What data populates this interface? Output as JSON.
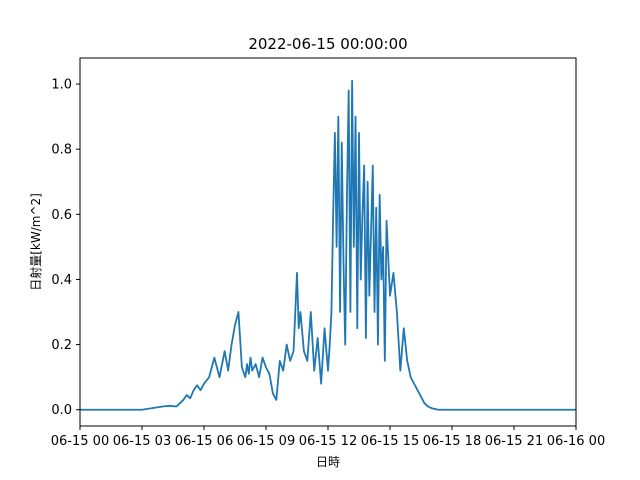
{
  "chart_data": {
    "type": "line",
    "title": "2022-06-15 00:00:00",
    "xlabel": "日時",
    "ylabel": "日射量[kW/m^2]",
    "xlim": [
      "06-15 00",
      "06-16 00"
    ],
    "ylim": [
      -0.05,
      1.08
    ],
    "x_ticks": [
      "06-15 00",
      "06-15 03",
      "06-15 06",
      "06-15 09",
      "06-15 12",
      "06-15 15",
      "06-15 18",
      "06-15 21",
      "06-16 00"
    ],
    "y_ticks": [
      "0.0",
      "0.2",
      "0.4",
      "0.6",
      "0.8",
      "1.0"
    ],
    "grid": false,
    "line_color": "#1f77b4",
    "series": [
      {
        "x": [
          "06-15 00:00",
          "06-15 01:00",
          "06-15 02:00",
          "06-15 03:00",
          "06-15 04:00",
          "06-15 04:20",
          "06-15 04:40",
          "06-15 05:00",
          "06-15 05:10",
          "06-15 05:20",
          "06-15 05:30",
          "06-15 05:40",
          "06-15 05:50",
          "06-15 06:00",
          "06-15 06:15",
          "06-15 06:30",
          "06-15 06:45",
          "06-15 07:00",
          "06-15 07:10",
          "06-15 07:20",
          "06-15 07:30",
          "06-15 07:40",
          "06-15 07:50",
          "06-15 08:00",
          "06-15 08:05",
          "06-15 08:10",
          "06-15 08:15",
          "06-15 08:20",
          "06-15 08:30",
          "06-15 08:40",
          "06-15 08:50",
          "06-15 09:00",
          "06-15 09:10",
          "06-15 09:20",
          "06-15 09:30",
          "06-15 09:40",
          "06-15 09:50",
          "06-15 10:00",
          "06-15 10:10",
          "06-15 10:20",
          "06-15 10:25",
          "06-15 10:30",
          "06-15 10:35",
          "06-15 10:40",
          "06-15 10:50",
          "06-15 11:00",
          "06-15 11:10",
          "06-15 11:20",
          "06-15 11:30",
          "06-15 11:40",
          "06-15 11:50",
          "06-15 12:00",
          "06-15 12:05",
          "06-15 12:10",
          "06-15 12:15",
          "06-15 12:20",
          "06-15 12:25",
          "06-15 12:30",
          "06-15 12:35",
          "06-15 12:40",
          "06-15 12:45",
          "06-15 12:50",
          "06-15 12:55",
          "06-15 13:00",
          "06-15 13:05",
          "06-15 13:10",
          "06-15 13:15",
          "06-15 13:20",
          "06-15 13:25",
          "06-15 13:30",
          "06-15 13:35",
          "06-15 13:40",
          "06-15 13:45",
          "06-15 13:50",
          "06-15 13:55",
          "06-15 14:00",
          "06-15 14:05",
          "06-15 14:10",
          "06-15 14:15",
          "06-15 14:20",
          "06-15 14:25",
          "06-15 14:30",
          "06-15 14:35",
          "06-15 14:40",
          "06-15 14:45",
          "06-15 14:50",
          "06-15 15:00",
          "06-15 15:10",
          "06-15 15:20",
          "06-15 15:30",
          "06-15 15:40",
          "06-15 15:50",
          "06-15 16:00",
          "06-15 16:10",
          "06-15 16:20",
          "06-15 16:30",
          "06-15 16:40",
          "06-15 16:50",
          "06-15 17:00",
          "06-15 17:20",
          "06-15 17:40",
          "06-15 18:00",
          "06-15 18:30",
          "06-15 19:00",
          "06-15 20:00",
          "06-15 21:00",
          "06-15 22:00",
          "06-15 23:00",
          "06-16 00:00"
        ],
        "y": [
          0.0,
          0.0,
          0.0,
          0.0,
          0.01,
          0.012,
          0.01,
          0.03,
          0.045,
          0.035,
          0.06,
          0.075,
          0.06,
          0.08,
          0.1,
          0.16,
          0.1,
          0.18,
          0.12,
          0.2,
          0.26,
          0.3,
          0.13,
          0.1,
          0.14,
          0.11,
          0.16,
          0.12,
          0.14,
          0.1,
          0.16,
          0.13,
          0.11,
          0.05,
          0.03,
          0.15,
          0.12,
          0.2,
          0.15,
          0.18,
          0.3,
          0.42,
          0.25,
          0.3,
          0.18,
          0.15,
          0.3,
          0.12,
          0.22,
          0.08,
          0.25,
          0.12,
          0.2,
          0.3,
          0.6,
          0.85,
          0.5,
          0.9,
          0.3,
          0.82,
          0.45,
          0.2,
          0.65,
          0.98,
          0.3,
          1.01,
          0.5,
          0.9,
          0.25,
          0.85,
          0.4,
          0.6,
          0.75,
          0.22,
          0.7,
          0.35,
          0.55,
          0.75,
          0.3,
          0.62,
          0.2,
          0.66,
          0.4,
          0.5,
          0.15,
          0.58,
          0.35,
          0.42,
          0.3,
          0.12,
          0.25,
          0.15,
          0.1,
          0.08,
          0.06,
          0.04,
          0.02,
          0.01,
          0.005,
          0.0,
          0.0,
          0.0,
          0.0,
          0.0,
          0.0,
          0.0,
          0.0,
          0.0,
          0.0
        ]
      }
    ]
  }
}
